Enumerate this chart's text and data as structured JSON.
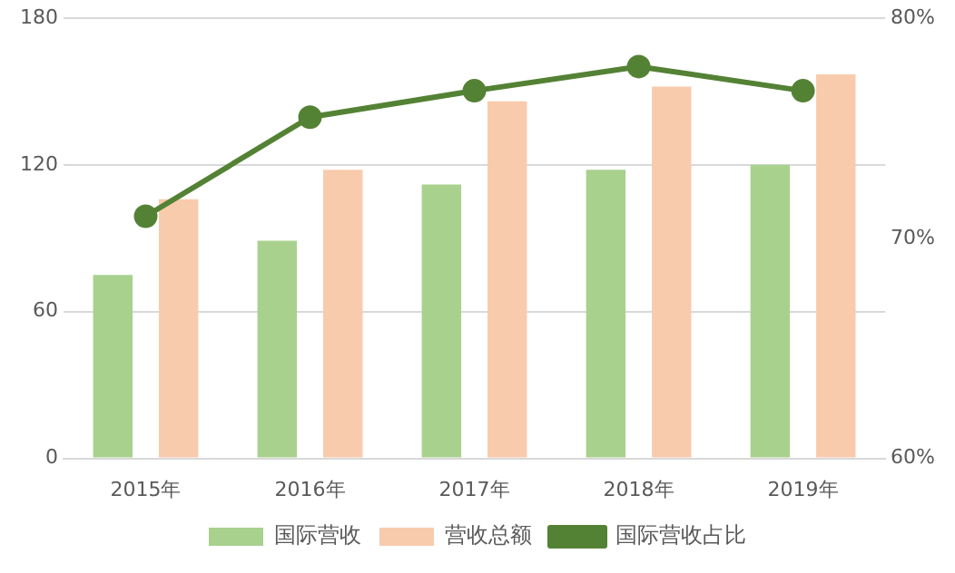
{
  "chart_data": {
    "type": "bar",
    "categories": [
      "2015年",
      "2016年",
      "2017年",
      "2018年",
      "2019年"
    ],
    "series": [
      {
        "name": "国际营收",
        "color": "#a9d18e",
        "values": [
          75,
          89,
          112,
          118,
          120
        ]
      },
      {
        "name": "营收总额",
        "color": "#f8cbad",
        "values": [
          106,
          118,
          146,
          152,
          157
        ]
      },
      {
        "name": "国际营收占比",
        "type": "line",
        "axis": "y2",
        "color": "#548235",
        "values": [
          71.0,
          75.5,
          76.7,
          77.8,
          76.7
        ]
      }
    ],
    "ylim": [
      0,
      180
    ],
    "yticks": [
      0,
      60,
      120,
      180
    ],
    "y2lim": [
      60,
      80
    ],
    "y2ticks": [
      {
        "value": 60,
        "label": "60%"
      },
      {
        "value": 70,
        "label": "70%"
      },
      {
        "value": 80,
        "label": "80%"
      }
    ],
    "grid": "y",
    "legend": "bottom",
    "marker": "circle",
    "line_style": "solid"
  }
}
